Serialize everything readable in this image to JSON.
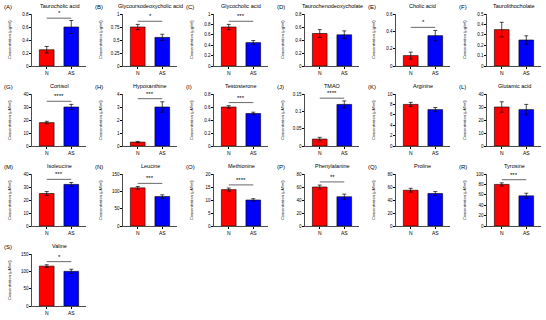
{
  "chart_data": [
    {
      "type": "bar",
      "panel": "(A)",
      "title": "Taurocholic acid",
      "ylabel": "Concentration (μg/ml)",
      "categories": [
        "N",
        "AS"
      ],
      "values": [
        0.25,
        0.6
      ],
      "errors": [
        0.05,
        0.1
      ],
      "colors": [
        "#ff0000",
        "#0000ff"
      ],
      "ylim": [
        0,
        0.8
      ],
      "yticks": [
        0,
        0.2,
        0.4,
        0.6,
        0.8
      ],
      "significance": "*",
      "grid": false
    },
    {
      "type": "bar",
      "panel": "(B)",
      "title": "Glycoursodeoxycholic acid",
      "ylabel": "Concentration (μg/ml)",
      "categories": [
        "N",
        "AS"
      ],
      "values": [
        0.75,
        0.55
      ],
      "errors": [
        0.05,
        0.06
      ],
      "colors": [
        "#ff0000",
        "#0000ff"
      ],
      "ylim": [
        0,
        1
      ],
      "yticks": [
        0,
        0.25,
        0.5,
        0.75,
        1
      ],
      "significance": "*",
      "grid": false
    },
    {
      "type": "bar",
      "panel": "(C)",
      "title": "Glycocholic acid",
      "ylabel": "Concentration (μg/ml)",
      "categories": [
        "N",
        "AS"
      ],
      "values": [
        0.75,
        0.45
      ],
      "errors": [
        0.05,
        0.04
      ],
      "colors": [
        "#ff0000",
        "#0000ff"
      ],
      "ylim": [
        0,
        1
      ],
      "yticks": [
        0,
        0.2,
        0.4,
        0.6,
        0.8,
        1
      ],
      "significance": "***",
      "grid": false
    },
    {
      "type": "bar",
      "panel": "(D)",
      "title": "Taurochenodeoxycholate",
      "ylabel": "Concentration (μg/ml)",
      "categories": [
        "N",
        "AS"
      ],
      "values": [
        0.5,
        0.48
      ],
      "errors": [
        0.06,
        0.06
      ],
      "colors": [
        "#ff0000",
        "#0000ff"
      ],
      "ylim": [
        0,
        0.8
      ],
      "yticks": [
        0,
        0.2,
        0.4,
        0.6,
        0.8
      ],
      "grid": false
    },
    {
      "type": "bar",
      "panel": "(E)",
      "title": "Cholic acid",
      "ylabel": "Concentration (μg/ml)",
      "categories": [
        "N",
        "AS"
      ],
      "values": [
        0.12,
        0.35
      ],
      "errors": [
        0.04,
        0.06
      ],
      "colors": [
        "#ff0000",
        "#0000ff"
      ],
      "ylim": [
        0,
        0.6
      ],
      "yticks": [
        0,
        0.2,
        0.4,
        0.6
      ],
      "significance": "*",
      "grid": false
    },
    {
      "type": "bar",
      "panel": "(F)",
      "title": "Taurolithocholate",
      "ylabel": "Concentration (μg/ml)",
      "categories": [
        "N",
        "AS"
      ],
      "values": [
        0.35,
        0.25
      ],
      "errors": [
        0.07,
        0.04
      ],
      "colors": [
        "#ff0000",
        "#0000ff"
      ],
      "ylim": [
        0,
        0.5
      ],
      "yticks": [
        0,
        0.1,
        0.2,
        0.3,
        0.4,
        0.5
      ],
      "grid": false
    },
    {
      "type": "bar",
      "panel": "(G)",
      "title": "Cortisol",
      "ylabel": "Concentration (μM/ml)",
      "categories": [
        "N",
        "AS"
      ],
      "values": [
        18,
        30
      ],
      "errors": [
        1,
        2
      ],
      "colors": [
        "#ff0000",
        "#0000ff"
      ],
      "ylim": [
        0,
        40
      ],
      "yticks": [
        0,
        10,
        20,
        30,
        40
      ],
      "significance": "****",
      "grid": false
    },
    {
      "type": "bar",
      "panel": "(H)",
      "title": "Hypoxanthine",
      "ylabel": "Concentration (μM/ml)",
      "categories": [
        "N",
        "AS"
      ],
      "values": [
        0.3,
        3
      ],
      "errors": [
        0.05,
        0.4
      ],
      "colors": [
        "#ff0000",
        "#0000ff"
      ],
      "ylim": [
        0,
        4
      ],
      "yticks": [
        0,
        1,
        2,
        3,
        4
      ],
      "significance": "***",
      "grid": false
    },
    {
      "type": "bar",
      "panel": "(I)",
      "title": "Testosterone",
      "ylabel": "Concentration (μM/ml)",
      "categories": [
        "N",
        "AS"
      ],
      "values": [
        0.6,
        0.5
      ],
      "errors": [
        0.02,
        0.02
      ],
      "colors": [
        "#ff0000",
        "#0000ff"
      ],
      "ylim": [
        0,
        0.8
      ],
      "yticks": [
        0,
        0.2,
        0.4,
        0.6,
        0.8
      ],
      "significance": "***",
      "grid": false
    },
    {
      "type": "bar",
      "panel": "(J)",
      "title": "TMAO",
      "ylabel": "Concentration (μM/ml)",
      "categories": [
        "N",
        "AS"
      ],
      "values": [
        0.02,
        0.12
      ],
      "errors": [
        0.005,
        0.01
      ],
      "colors": [
        "#ff0000",
        "#0000ff"
      ],
      "ylim": [
        0,
        0.15
      ],
      "yticks": [
        0,
        0.05,
        0.1,
        0.15
      ],
      "significance": "****",
      "grid": false
    },
    {
      "type": "bar",
      "panel": "(K)",
      "title": "Arginine",
      "ylabel": "Concentration (μM/ml)",
      "categories": [
        "N",
        "AS"
      ],
      "values": [
        8,
        7
      ],
      "errors": [
        0.4,
        0.4
      ],
      "colors": [
        "#ff0000",
        "#0000ff"
      ],
      "ylim": [
        0,
        10
      ],
      "yticks": [
        0,
        2,
        4,
        6,
        8,
        10
      ],
      "grid": false
    },
    {
      "type": "bar",
      "panel": "(L)",
      "title": "Glutamic acid",
      "ylabel": "Concentration (μM/ml)",
      "categories": [
        "N",
        "AS"
      ],
      "values": [
        30,
        28
      ],
      "errors": [
        4,
        4
      ],
      "colors": [
        "#ff0000",
        "#0000ff"
      ],
      "ylim": [
        0,
        40
      ],
      "yticks": [
        0,
        10,
        20,
        30,
        40
      ],
      "grid": false
    },
    {
      "type": "bar",
      "panel": "(M)",
      "title": "Isoleucine",
      "ylabel": "Concentration (μM/ml)",
      "categories": [
        "N",
        "AS"
      ],
      "values": [
        25,
        32
      ],
      "errors": [
        1.5,
        1.5
      ],
      "colors": [
        "#ff0000",
        "#0000ff"
      ],
      "ylim": [
        0,
        40
      ],
      "yticks": [
        0,
        10,
        20,
        30,
        40
      ],
      "significance": "***",
      "grid": false
    },
    {
      "type": "bar",
      "panel": "(N)",
      "title": "Leucine",
      "ylabel": "Concentration (μM/ml)",
      "categories": [
        "N",
        "AS"
      ],
      "values": [
        110,
        85
      ],
      "errors": [
        4,
        5
      ],
      "colors": [
        "#ff0000",
        "#0000ff"
      ],
      "ylim": [
        0,
        150
      ],
      "yticks": [
        0,
        50,
        100,
        150
      ],
      "significance": "***",
      "grid": false
    },
    {
      "type": "bar",
      "panel": "(O)",
      "title": "Methionine",
      "ylabel": "Concentration (μM/ml)",
      "categories": [
        "N",
        "AS"
      ],
      "values": [
        14,
        10
      ],
      "errors": [
        0.6,
        0.5
      ],
      "colors": [
        "#ff0000",
        "#0000ff"
      ],
      "ylim": [
        0,
        20
      ],
      "yticks": [
        0,
        5,
        10,
        15,
        20
      ],
      "significance": "****",
      "grid": false
    },
    {
      "type": "bar",
      "panel": "(P)",
      "title": "Phenylalanine",
      "ylabel": "Concentration (μM/ml)",
      "categories": [
        "N",
        "AS"
      ],
      "values": [
        60,
        45
      ],
      "errors": [
        3,
        4
      ],
      "colors": [
        "#ff0000",
        "#0000ff"
      ],
      "ylim": [
        0,
        80
      ],
      "yticks": [
        0,
        20,
        40,
        60,
        80
      ],
      "significance": "**",
      "grid": false
    },
    {
      "type": "bar",
      "panel": "(Q)",
      "title": "Proline",
      "ylabel": "Concentration (μM/ml)",
      "categories": [
        "N",
        "AS"
      ],
      "values": [
        55,
        50
      ],
      "errors": [
        3,
        3
      ],
      "colors": [
        "#ff0000",
        "#0000ff"
      ],
      "ylim": [
        0,
        80
      ],
      "yticks": [
        0,
        20,
        40,
        60,
        80
      ],
      "grid": false
    },
    {
      "type": "bar",
      "panel": "(R)",
      "title": "Tyrosine",
      "ylabel": "Concentration (μM/ml)",
      "categories": [
        "N",
        "AS"
      ],
      "values": [
        80,
        58
      ],
      "errors": [
        3,
        5
      ],
      "colors": [
        "#ff0000",
        "#0000ff"
      ],
      "ylim": [
        0,
        100
      ],
      "yticks": [
        0,
        20,
        40,
        60,
        80,
        100
      ],
      "significance": "***",
      "grid": false
    },
    {
      "type": "bar",
      "panel": "(S)",
      "title": "Valine",
      "ylabel": "Concentration (μM/ml)",
      "categories": [
        "N",
        "AS"
      ],
      "values": [
        115,
        100
      ],
      "errors": [
        4,
        6
      ],
      "colors": [
        "#ff0000",
        "#0000ff"
      ],
      "ylim": [
        0,
        150
      ],
      "yticks": [
        0,
        50,
        100,
        150
      ],
      "significance": "*",
      "grid": false
    }
  ]
}
